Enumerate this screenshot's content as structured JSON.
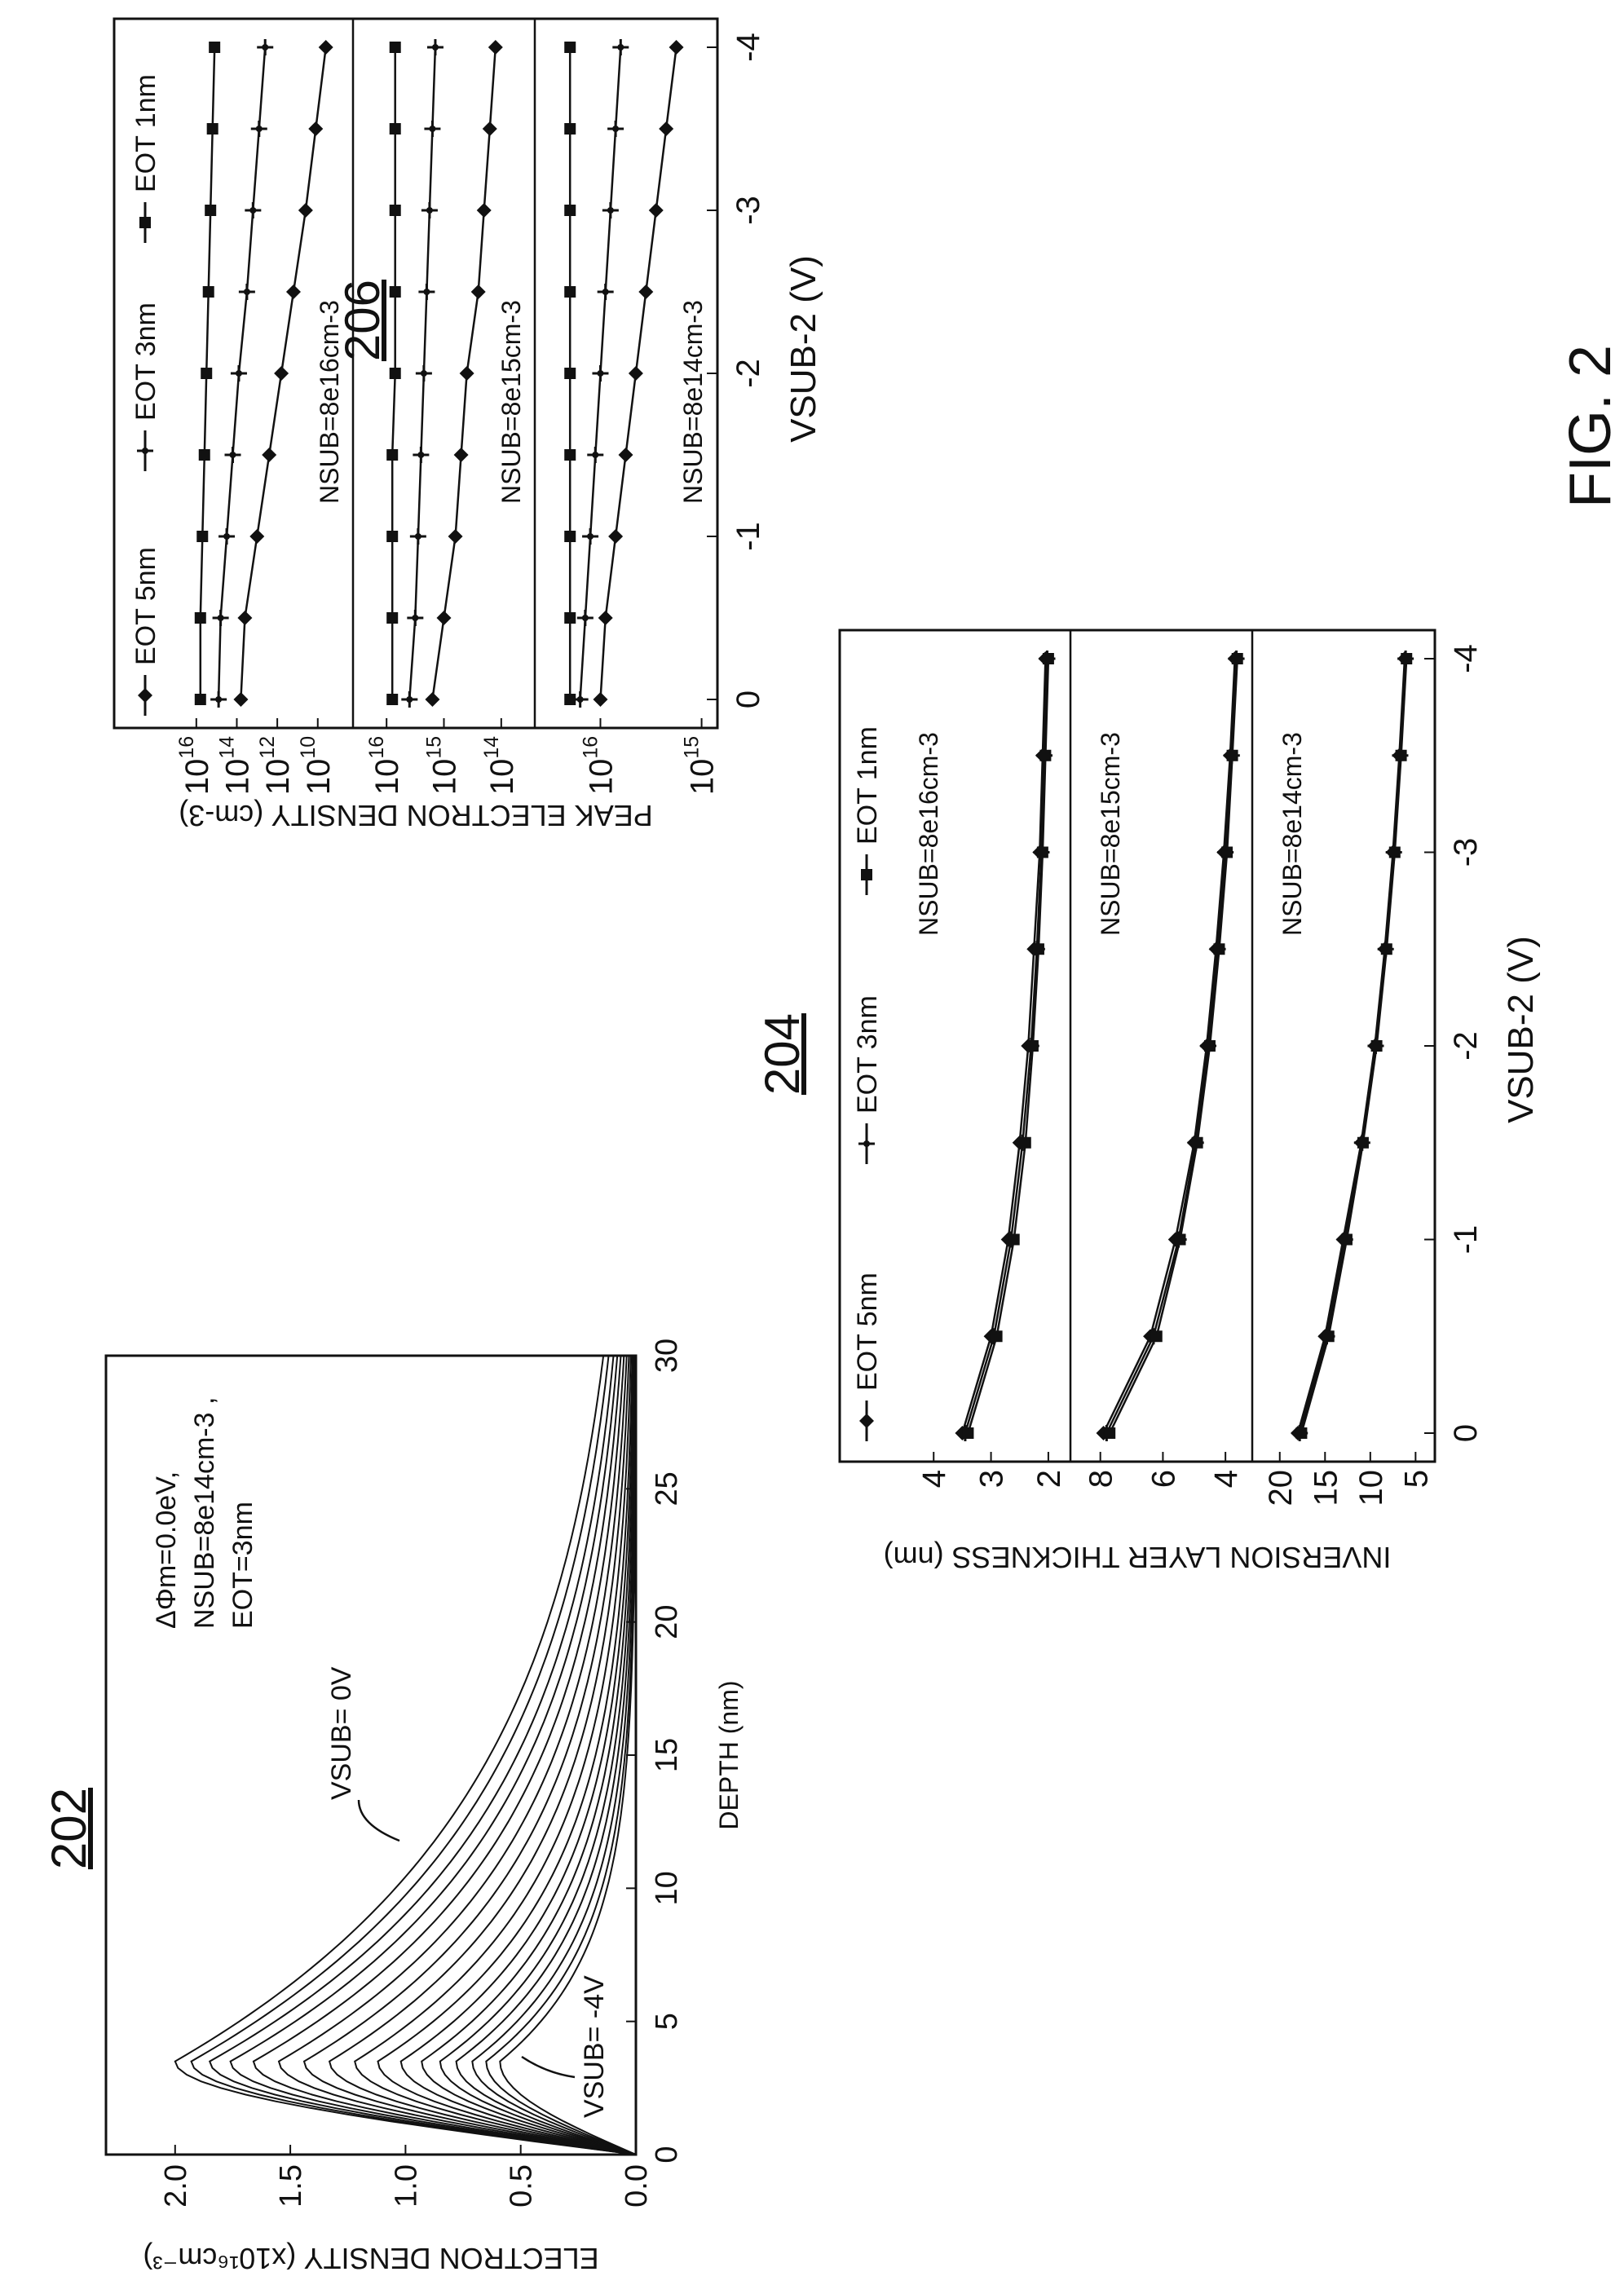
{
  "figure": {
    "caption": "FIG. 2"
  },
  "chart_data": [
    {
      "id": "202",
      "ref_label": "202",
      "type": "line",
      "title": "",
      "xlabel": "DEPTH (nm)",
      "ylabel": "ELECTRON DENSITY (x10¹⁶cm⁻³)",
      "xlim": [
        0,
        30
      ],
      "ylim": [
        0,
        2.3
      ],
      "x_ticks": [
        "0",
        "5",
        "10",
        "15",
        "20",
        "25",
        "30"
      ],
      "y_ticks": [
        "0.0",
        "0.5",
        "1.0",
        "1.5",
        "2.0"
      ],
      "annotations": {
        "params": [
          "ΔΦm=0.0eV,",
          "NSUB=8e14cm-3 ,",
          "EOT=3nm"
        ],
        "top_curve": "VSUB= 0V",
        "bottom_curve": "VSUB= -4V"
      },
      "series": [
        {
          "vsub": 0.0,
          "peak": 2.0,
          "decay": 10.0
        },
        {
          "vsub": -0.25,
          "peak": 1.93,
          "decay": 9.5
        },
        {
          "vsub": -0.5,
          "peak": 1.85,
          "decay": 9.0
        },
        {
          "vsub": -0.75,
          "peak": 1.76,
          "decay": 8.6
        },
        {
          "vsub": -1.0,
          "peak": 1.66,
          "decay": 8.2
        },
        {
          "vsub": -1.25,
          "peak": 1.55,
          "decay": 7.8
        },
        {
          "vsub": -1.5,
          "peak": 1.44,
          "decay": 7.4
        },
        {
          "vsub": -1.75,
          "peak": 1.33,
          "decay": 7.0
        },
        {
          "vsub": -2.0,
          "peak": 1.22,
          "decay": 6.6
        },
        {
          "vsub": -2.25,
          "peak": 1.12,
          "decay": 6.2
        },
        {
          "vsub": -2.5,
          "peak": 1.02,
          "decay": 5.9
        },
        {
          "vsub": -2.75,
          "peak": 0.93,
          "decay": 5.6
        },
        {
          "vsub": -3.0,
          "peak": 0.85,
          "decay": 5.3
        },
        {
          "vsub": -3.25,
          "peak": 0.78,
          "decay": 5.0
        },
        {
          "vsub": -3.5,
          "peak": 0.71,
          "decay": 4.7
        },
        {
          "vsub": -3.75,
          "peak": 0.65,
          "decay": 4.4
        },
        {
          "vsub": -4.0,
          "peak": 0.59,
          "decay": 4.2
        }
      ]
    },
    {
      "id": "204",
      "ref_label": "204",
      "type": "line",
      "xlabel": "VSUB-2 (V)",
      "ylabel": "INVERSION LAYER THICKNESS (nm)",
      "x": [
        0,
        -0.5,
        -1,
        -1.5,
        -2,
        -2.5,
        -3,
        -3.5,
        -4
      ],
      "x_ticks": [
        "0",
        "-1",
        "-2",
        "-3",
        "-4"
      ],
      "legend": [
        "EOT 5nm",
        "EOT 3nm",
        "EOT 1nm"
      ],
      "panels": [
        {
          "label": "NSUB=8e16cm-3",
          "ylim": [
            1.7,
            4.7
          ],
          "y_ticks": [
            "4",
            "3",
            "2"
          ],
          "series": [
            {
              "name": "EOT 5nm",
              "values": [
                3.5,
                3.0,
                2.7,
                2.5,
                2.35,
                2.25,
                2.15,
                2.1,
                2.05
              ]
            },
            {
              "name": "EOT 3nm",
              "values": [
                3.45,
                2.95,
                2.65,
                2.45,
                2.3,
                2.2,
                2.12,
                2.07,
                2.02
              ]
            },
            {
              "name": "EOT 1nm",
              "values": [
                3.4,
                2.9,
                2.6,
                2.4,
                2.27,
                2.17,
                2.1,
                2.05,
                2.0
              ]
            }
          ]
        },
        {
          "label": "NSUB=8e15cm-3",
          "ylim": [
            3.3,
            8.8
          ],
          "y_ticks": [
            "8",
            "6",
            "4"
          ],
          "series": [
            {
              "name": "EOT 5nm",
              "values": [
                7.9,
                6.4,
                5.6,
                5.0,
                4.6,
                4.3,
                4.05,
                3.85,
                3.7
              ]
            },
            {
              "name": "EOT 3nm",
              "values": [
                7.8,
                6.3,
                5.5,
                4.95,
                4.55,
                4.25,
                4.0,
                3.8,
                3.65
              ]
            },
            {
              "name": "EOT 1nm",
              "values": [
                7.7,
                6.2,
                5.45,
                4.9,
                4.5,
                4.2,
                3.95,
                3.78,
                3.62
              ]
            }
          ]
        },
        {
          "label": "NSUB=8e14cm-3",
          "ylim": [
            3.5,
            22.5
          ],
          "y_ticks": [
            "20",
            "15",
            "10",
            "5"
          ],
          "series": [
            {
              "name": "EOT 5nm",
              "values": [
                18.0,
                15.0,
                13.0,
                11.0,
                9.5,
                8.4,
                7.5,
                6.8,
                6.2
              ]
            },
            {
              "name": "EOT 3nm",
              "values": [
                17.8,
                14.8,
                12.8,
                10.9,
                9.4,
                8.3,
                7.4,
                6.7,
                6.1
              ]
            },
            {
              "name": "EOT 1nm",
              "values": [
                17.6,
                14.6,
                12.6,
                10.8,
                9.3,
                8.2,
                7.3,
                6.6,
                6.0
              ]
            }
          ]
        }
      ]
    },
    {
      "id": "206",
      "ref_label": "206",
      "type": "line",
      "xlabel": "VSUB-2 (V)",
      "ylabel": "PEAK ELECTRON DENSITY (cm-3)",
      "log_y": true,
      "x": [
        0,
        -0.5,
        -1,
        -1.5,
        -2,
        -2.5,
        -3,
        -3.5,
        -4
      ],
      "x_ticks": [
        "0",
        "-1",
        "-2",
        "-3",
        "-4"
      ],
      "legend": [
        "EOT 5nm",
        "EOT 3nm",
        "EOT 1nm"
      ],
      "panels": [
        {
          "label": "NSUB=8e16cm-3",
          "ylim_exp": [
            8.5,
            17
          ],
          "y_tick_exps": [
            16,
            14,
            12,
            10
          ],
          "series": [
            {
              "name": "EOT 5nm",
              "values": [
                13.8,
                13.6,
                13.0,
                12.4,
                11.8,
                11.2,
                10.6,
                10.1,
                9.6
              ]
            },
            {
              "name": "EOT 3nm",
              "values": [
                14.9,
                14.8,
                14.5,
                14.2,
                13.9,
                13.5,
                13.2,
                12.9,
                12.6
              ]
            },
            {
              "name": "EOT 1nm",
              "values": [
                15.8,
                15.8,
                15.7,
                15.6,
                15.5,
                15.4,
                15.3,
                15.2,
                15.1
              ]
            }
          ]
        },
        {
          "label": "NSUB=8e15cm-3",
          "ylim_exp": [
            13.5,
            16.5
          ],
          "y_tick_exps": [
            16,
            15,
            14
          ],
          "series": [
            {
              "name": "EOT 5nm",
              "values": [
                15.2,
                15.0,
                14.8,
                14.7,
                14.6,
                14.4,
                14.3,
                14.2,
                14.1
              ]
            },
            {
              "name": "EOT 3nm",
              "values": [
                15.6,
                15.5,
                15.45,
                15.4,
                15.35,
                15.3,
                15.25,
                15.2,
                15.15
              ]
            },
            {
              "name": "EOT 1nm",
              "values": [
                15.9,
                15.9,
                15.9,
                15.9,
                15.85,
                15.85,
                15.85,
                15.85,
                15.85
              ]
            }
          ]
        },
        {
          "label": "NSUB=8e14cm-3",
          "ylim_exp": [
            14.9,
            16.6
          ],
          "y_tick_exps": [
            16,
            15
          ],
          "series": [
            {
              "name": "EOT 5nm",
              "values": [
                16.0,
                15.95,
                15.85,
                15.75,
                15.65,
                15.55,
                15.45,
                15.35,
                15.25
              ]
            },
            {
              "name": "EOT 3nm",
              "values": [
                16.2,
                16.15,
                16.1,
                16.05,
                16.0,
                15.95,
                15.9,
                15.85,
                15.8
              ]
            },
            {
              "name": "EOT 1nm",
              "values": [
                16.3,
                16.3,
                16.3,
                16.3,
                16.3,
                16.3,
                16.3,
                16.3,
                16.3
              ]
            }
          ]
        }
      ]
    }
  ]
}
